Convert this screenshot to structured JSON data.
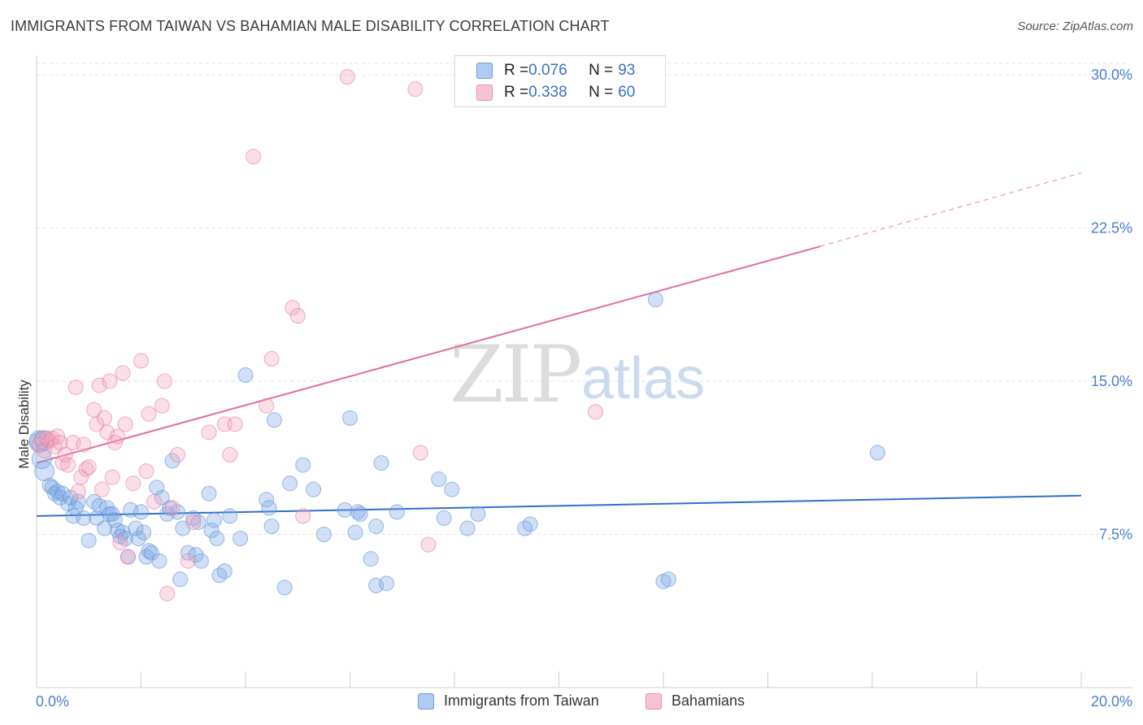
{
  "header": {
    "title": "IMMIGRANTS FROM TAIWAN VS BAHAMIAN MALE DISABILITY CORRELATION CHART",
    "source": "Source: ZipAtlas.com"
  },
  "watermark": {
    "zip": "ZIP",
    "atlas": "atlas"
  },
  "legend_top": {
    "rows": [
      {
        "r_label": "R = ",
        "r_value": "0.076",
        "n_label": "N = ",
        "n_value": "93",
        "color": "#aecbf2",
        "border": "#6f9fdc"
      },
      {
        "r_label": "R = ",
        "r_value": "0.338",
        "n_label": "N = ",
        "n_value": "60",
        "color": "#f7c3d2",
        "border": "#e890ab"
      }
    ]
  },
  "legend_bottom": {
    "items": [
      {
        "label": "Immigrants from Taiwan",
        "color": "#aecbf2",
        "border": "#6f9fdc"
      },
      {
        "label": "Bahamians",
        "color": "#f7c3d2",
        "border": "#e890ab"
      }
    ]
  },
  "chart_data": {
    "type": "scatter",
    "title": "IMMIGRANTS FROM TAIWAN VS BAHAMIAN MALE DISABILITY CORRELATION CHART",
    "xlabel": "",
    "ylabel": "Male Disability",
    "xlim": [
      0,
      20
    ],
    "ylim": [
      0,
      30.8
    ],
    "x_tick_labels": [
      "0.0%",
      "20.0%"
    ],
    "y_ticks": [
      7.5,
      15.0,
      22.5,
      30.0
    ],
    "y_tick_labels": [
      "7.5%",
      "15.0%",
      "22.5%",
      "30.0%"
    ],
    "grid": true,
    "series": [
      {
        "name": "Immigrants from Taiwan",
        "color": "#7aa7e6",
        "stroke": "#5b8fd8",
        "trend": {
          "x": [
            0,
            20
          ],
          "y": [
            8.4,
            9.4
          ],
          "color": "#2e6fcc"
        },
        "points": [
          [
            0.05,
            12.1
          ],
          [
            0.1,
            11.2
          ],
          [
            0.15,
            10.6
          ],
          [
            0.25,
            9.9
          ],
          [
            0.3,
            9.8
          ],
          [
            0.35,
            9.5
          ],
          [
            0.4,
            9.6
          ],
          [
            0.45,
            9.3
          ],
          [
            0.5,
            9.5
          ],
          [
            0.6,
            9.0
          ],
          [
            0.65,
            9.3
          ],
          [
            0.7,
            8.4
          ],
          [
            0.75,
            8.8
          ],
          [
            0.8,
            9.1
          ],
          [
            0.9,
            8.3
          ],
          [
            1.0,
            7.2
          ],
          [
            1.1,
            9.1
          ],
          [
            1.15,
            8.3
          ],
          [
            1.2,
            8.9
          ],
          [
            1.3,
            7.8
          ],
          [
            1.35,
            8.8
          ],
          [
            1.4,
            8.5
          ],
          [
            1.45,
            8.5
          ],
          [
            1.5,
            8.2
          ],
          [
            1.55,
            7.7
          ],
          [
            1.6,
            7.4
          ],
          [
            1.65,
            7.6
          ],
          [
            1.7,
            7.3
          ],
          [
            1.75,
            6.4
          ],
          [
            1.8,
            8.7
          ],
          [
            1.9,
            7.8
          ],
          [
            1.95,
            7.3
          ],
          [
            2.0,
            8.6
          ],
          [
            2.05,
            7.6
          ],
          [
            2.1,
            6.4
          ],
          [
            2.15,
            6.7
          ],
          [
            2.2,
            6.6
          ],
          [
            2.3,
            9.8
          ],
          [
            2.35,
            6.2
          ],
          [
            2.4,
            9.3
          ],
          [
            2.5,
            8.5
          ],
          [
            2.55,
            8.8
          ],
          [
            2.6,
            11.1
          ],
          [
            2.7,
            8.6
          ],
          [
            2.75,
            5.3
          ],
          [
            2.8,
            7.8
          ],
          [
            2.9,
            6.6
          ],
          [
            3.0,
            8.3
          ],
          [
            3.05,
            6.5
          ],
          [
            3.1,
            8.1
          ],
          [
            3.15,
            6.2
          ],
          [
            3.3,
            9.5
          ],
          [
            3.35,
            7.7
          ],
          [
            3.4,
            8.2
          ],
          [
            3.45,
            7.3
          ],
          [
            3.5,
            5.5
          ],
          [
            3.6,
            5.7
          ],
          [
            3.7,
            8.4
          ],
          [
            3.9,
            7.3
          ],
          [
            4.0,
            15.3
          ],
          [
            4.4,
            9.2
          ],
          [
            4.45,
            8.8
          ],
          [
            4.5,
            7.9
          ],
          [
            4.55,
            13.1
          ],
          [
            4.75,
            4.9
          ],
          [
            4.85,
            10.0
          ],
          [
            5.1,
            10.9
          ],
          [
            5.3,
            9.7
          ],
          [
            5.5,
            7.5
          ],
          [
            5.9,
            8.7
          ],
          [
            6.0,
            13.2
          ],
          [
            6.1,
            7.6
          ],
          [
            6.15,
            8.6
          ],
          [
            6.2,
            8.5
          ],
          [
            6.4,
            6.3
          ],
          [
            6.5,
            7.9
          ],
          [
            6.5,
            5.0
          ],
          [
            6.6,
            11.0
          ],
          [
            6.7,
            5.1
          ],
          [
            6.9,
            8.6
          ],
          [
            7.7,
            10.2
          ],
          [
            7.8,
            8.3
          ],
          [
            7.95,
            9.7
          ],
          [
            8.25,
            7.8
          ],
          [
            8.45,
            8.5
          ],
          [
            9.35,
            7.8
          ],
          [
            9.45,
            8.0
          ],
          [
            11.85,
            19.0
          ],
          [
            12.0,
            5.2
          ],
          [
            12.1,
            5.3
          ],
          [
            16.1,
            11.5
          ],
          [
            0.05,
            12.0
          ],
          [
            0.15,
            12.1
          ]
        ]
      },
      {
        "name": "Bahamians",
        "color": "#f3a3bd",
        "stroke": "#e57a9d",
        "trend": {
          "x": [
            0,
            15
          ],
          "y": [
            11.0,
            21.6
          ],
          "dashed_to": {
            "x": 20,
            "y": 25.2
          },
          "color": "#e36e98"
        },
        "points": [
          [
            0.05,
            11.9
          ],
          [
            0.1,
            12.2
          ],
          [
            0.15,
            11.6
          ],
          [
            0.2,
            12.2
          ],
          [
            0.25,
            12.1
          ],
          [
            0.3,
            12.2
          ],
          [
            0.35,
            11.8
          ],
          [
            0.4,
            12.3
          ],
          [
            0.45,
            12.0
          ],
          [
            0.5,
            11.0
          ],
          [
            0.55,
            11.4
          ],
          [
            0.6,
            10.9
          ],
          [
            0.7,
            12.0
          ],
          [
            0.75,
            14.7
          ],
          [
            0.8,
            9.6
          ],
          [
            0.85,
            10.3
          ],
          [
            0.9,
            11.9
          ],
          [
            0.95,
            10.7
          ],
          [
            1.0,
            10.8
          ],
          [
            1.1,
            13.6
          ],
          [
            1.15,
            12.9
          ],
          [
            1.2,
            14.8
          ],
          [
            1.25,
            9.7
          ],
          [
            1.3,
            13.2
          ],
          [
            1.35,
            12.5
          ],
          [
            1.4,
            15.0
          ],
          [
            1.45,
            10.3
          ],
          [
            1.5,
            12.0
          ],
          [
            1.55,
            12.3
          ],
          [
            1.6,
            7.1
          ],
          [
            1.65,
            15.4
          ],
          [
            1.7,
            12.9
          ],
          [
            1.75,
            6.4
          ],
          [
            1.85,
            10.0
          ],
          [
            2.0,
            16.0
          ],
          [
            2.1,
            10.6
          ],
          [
            2.15,
            13.4
          ],
          [
            2.25,
            9.1
          ],
          [
            2.4,
            13.8
          ],
          [
            2.45,
            15.0
          ],
          [
            2.5,
            4.6
          ],
          [
            2.6,
            8.8
          ],
          [
            2.7,
            11.4
          ],
          [
            2.9,
            6.2
          ],
          [
            3.0,
            8.1
          ],
          [
            3.3,
            12.5
          ],
          [
            3.6,
            12.9
          ],
          [
            3.7,
            11.4
          ],
          [
            3.8,
            12.9
          ],
          [
            4.15,
            26.0
          ],
          [
            4.4,
            13.8
          ],
          [
            4.5,
            16.1
          ],
          [
            4.9,
            18.6
          ],
          [
            5.0,
            18.2
          ],
          [
            5.1,
            8.4
          ],
          [
            5.95,
            29.9
          ],
          [
            7.25,
            29.3
          ],
          [
            7.35,
            11.5
          ],
          [
            7.5,
            7.0
          ],
          [
            10.7,
            13.5
          ]
        ]
      }
    ]
  }
}
